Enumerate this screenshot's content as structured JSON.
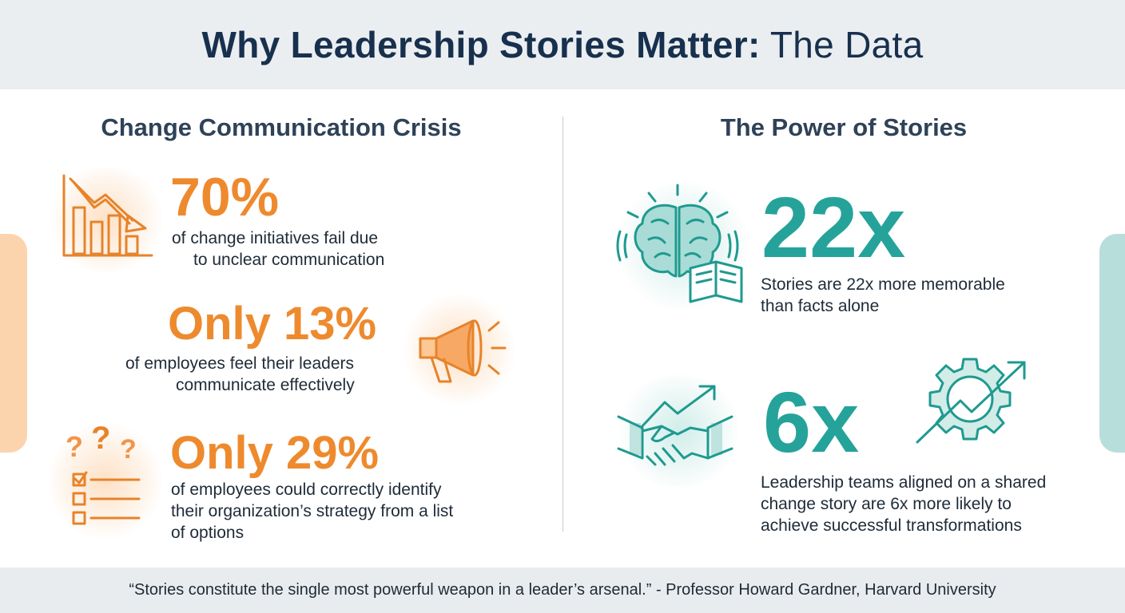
{
  "header": {
    "title_bold": "Why Leadership Stories Matter:",
    "title_light": " The Data"
  },
  "left": {
    "section_title": "Change Communication Crisis",
    "stats": [
      {
        "value": "70%",
        "line1": "of change initiatives fail due",
        "line2": "to unclear communication",
        "icon": "declining-chart-icon"
      },
      {
        "value": "Only 13%",
        "line1": "of employees feel their leaders",
        "line2": "communicate effectively",
        "icon": "megaphone-icon"
      },
      {
        "value": "Only 29%",
        "line1": "of employees could correctly identify",
        "line2": "their organization’s strategy from a list",
        "line3": "of options",
        "icon": "question-checklist-icon"
      }
    ]
  },
  "right": {
    "section_title": "The Power of Stories",
    "stats": [
      {
        "value": "22x",
        "line1": "Stories are 22x more memorable",
        "line2": "than facts alone",
        "icon": "brain-book-icon"
      },
      {
        "value": "6x",
        "line1": "Leadership teams aligned on a shared",
        "line2": "change story are 6x more likely to",
        "line3": "achieve successful transformations",
        "icon": "handshake-growth-icon",
        "icon2": "gear-growth-icon"
      }
    ]
  },
  "footer": {
    "quote": "“Stories constitute the single most powerful weapon in a leader’s arsenal.” - Professor Howard Gardner, Harvard University"
  },
  "colors": {
    "accent_orange": "#ee8a2e",
    "accent_teal": "#25a39a",
    "title_navy": "#17304d"
  }
}
